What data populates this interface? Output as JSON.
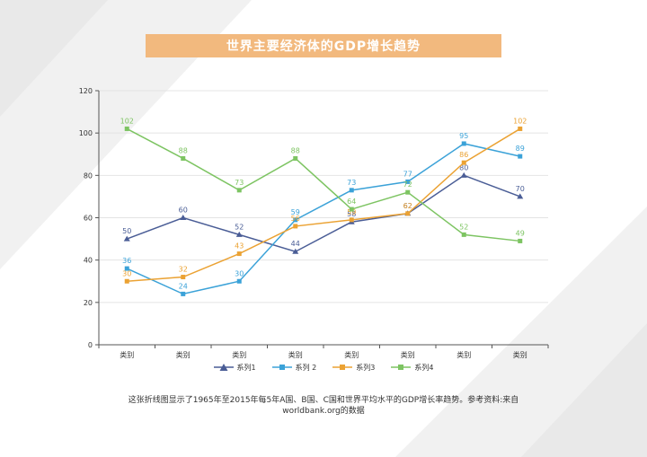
{
  "title": "世界主要经济体的GDP增长趋势",
  "caption": "这张折线图显示了1965年至2015年每5年A国、B国、C国和世界平均水平的GDP增长率趋势。参考资料:来自worldbank.org的数据",
  "colors": {
    "title_bg": "#f2b97e",
    "series": [
      "#4a5d96",
      "#3ba2d8",
      "#eba233",
      "#7dc462"
    ]
  },
  "chart_data": {
    "type": "line",
    "title": "世界主要经济体的GDP增长趋势",
    "categories": [
      "类别",
      "类别",
      "类别",
      "类别",
      "类别",
      "类别",
      "类别",
      "类别"
    ],
    "ylim": [
      0,
      120
    ],
    "yticks": [
      "0",
      "20",
      "40",
      "60",
      "80",
      "100",
      "120"
    ],
    "grid": true,
    "legend_position": "bottom",
    "series": [
      {
        "name": "系列1",
        "marker": "triangle",
        "values": [
          50,
          60,
          52,
          44,
          58,
          62,
          80,
          70
        ]
      },
      {
        "name": "系列 2",
        "marker": "square",
        "values": [
          36,
          24,
          30,
          59,
          73,
          77,
          95,
          89
        ]
      },
      {
        "name": "系列3",
        "marker": "square",
        "values": [
          30,
          32,
          43,
          56,
          59,
          62,
          86,
          102
        ]
      },
      {
        "name": "系列4",
        "marker": "square",
        "values": [
          102,
          88,
          73,
          88,
          64,
          72,
          52,
          49
        ]
      }
    ]
  }
}
